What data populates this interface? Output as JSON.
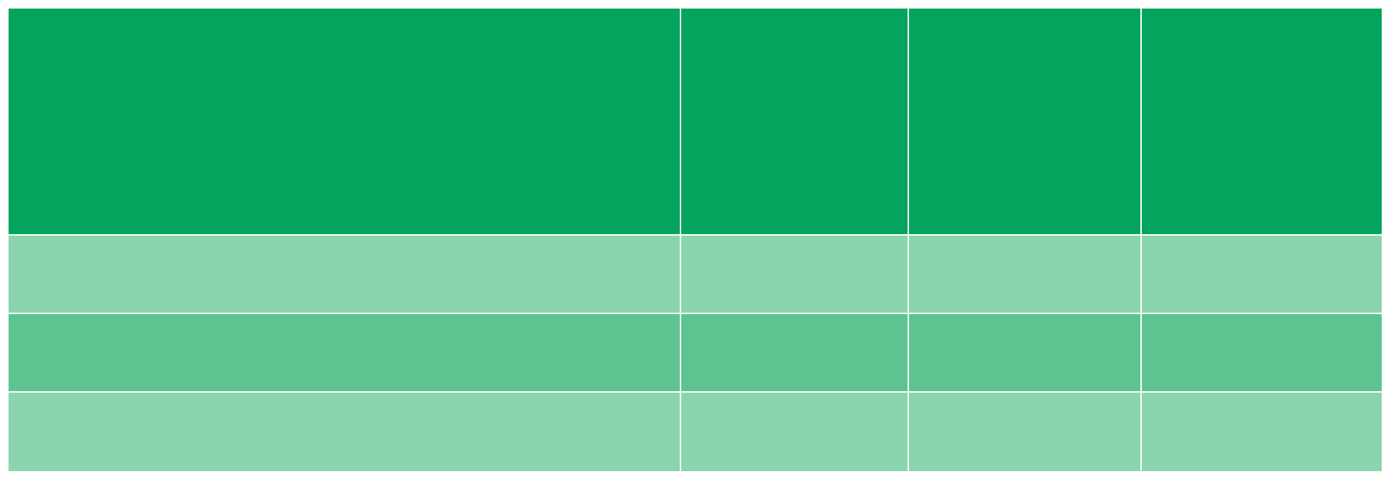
{
  "table": {
    "colors": {
      "header": "#03a45e",
      "row_light": "#8bd5ae",
      "row_mid": "#5dc491",
      "gridline": "#ffffff"
    },
    "header": [
      "",
      "",
      "",
      ""
    ],
    "rows": [
      [
        "",
        "",
        "",
        ""
      ],
      [
        "",
        "",
        "",
        ""
      ],
      [
        "",
        "",
        "",
        ""
      ]
    ]
  }
}
